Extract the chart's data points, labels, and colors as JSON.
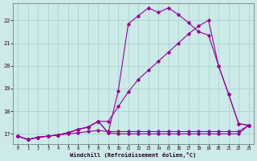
{
  "bg_color": "#cceae8",
  "line_color": "#990099",
  "grid_color": "#aad4d0",
  "xlabel": "Windchill (Refroidissement éolien,°C)",
  "x_ticks": [
    0,
    1,
    2,
    3,
    4,
    5,
    6,
    7,
    8,
    9,
    10,
    11,
    12,
    13,
    14,
    15,
    16,
    17,
    18,
    19,
    20,
    21,
    22,
    23
  ],
  "y_ticks": [
    17,
    18,
    19,
    20,
    21,
    22
  ],
  "xlim": [
    -0.5,
    23.5
  ],
  "ylim": [
    16.55,
    22.75
  ],
  "s1_x": [
    0,
    1,
    2,
    3,
    4,
    5,
    6,
    7,
    8,
    9,
    10,
    11,
    12,
    13,
    14,
    15,
    16,
    17,
    18,
    19,
    20,
    21,
    22,
    23
  ],
  "s1_y": [
    16.9,
    16.75,
    16.85,
    16.9,
    16.95,
    17.0,
    17.05,
    17.1,
    17.15,
    17.1,
    17.1,
    17.1,
    17.1,
    17.1,
    17.1,
    17.1,
    17.1,
    17.1,
    17.1,
    17.1,
    17.1,
    17.1,
    17.1,
    17.38
  ],
  "s2_x": [
    0,
    1,
    2,
    3,
    4,
    5,
    6,
    7,
    8,
    9,
    10,
    11,
    12,
    13,
    14,
    15,
    16,
    17,
    18,
    19,
    20,
    21,
    22,
    23
  ],
  "s2_y": [
    16.9,
    16.75,
    16.85,
    16.9,
    16.95,
    17.05,
    17.2,
    17.3,
    17.55,
    17.05,
    17.0,
    17.0,
    17.0,
    17.0,
    17.0,
    17.0,
    17.0,
    17.0,
    17.0,
    17.0,
    17.0,
    17.0,
    17.0,
    17.38
  ],
  "s3_x": [
    0,
    1,
    2,
    3,
    4,
    5,
    6,
    7,
    8,
    9,
    10,
    11,
    12,
    13,
    14,
    15,
    16,
    17,
    18,
    19,
    20,
    21,
    22,
    23
  ],
  "s3_y": [
    16.9,
    16.75,
    16.85,
    16.9,
    16.95,
    17.05,
    17.2,
    17.3,
    17.55,
    17.05,
    18.9,
    21.85,
    22.2,
    22.55,
    22.35,
    22.55,
    22.25,
    21.9,
    21.5,
    21.35,
    20.0,
    18.75,
    17.45,
    17.38
  ],
  "s4_x": [
    0,
    1,
    2,
    3,
    4,
    5,
    6,
    7,
    8,
    9,
    10,
    11,
    12,
    13,
    14,
    15,
    16,
    17,
    18,
    19,
    20,
    21,
    22,
    23
  ],
  "s4_y": [
    16.9,
    16.75,
    16.85,
    16.9,
    16.95,
    17.05,
    17.2,
    17.3,
    17.55,
    17.55,
    18.2,
    18.85,
    19.4,
    19.8,
    20.2,
    20.6,
    21.0,
    21.4,
    21.75,
    22.0,
    20.0,
    18.75,
    17.45,
    17.38
  ]
}
